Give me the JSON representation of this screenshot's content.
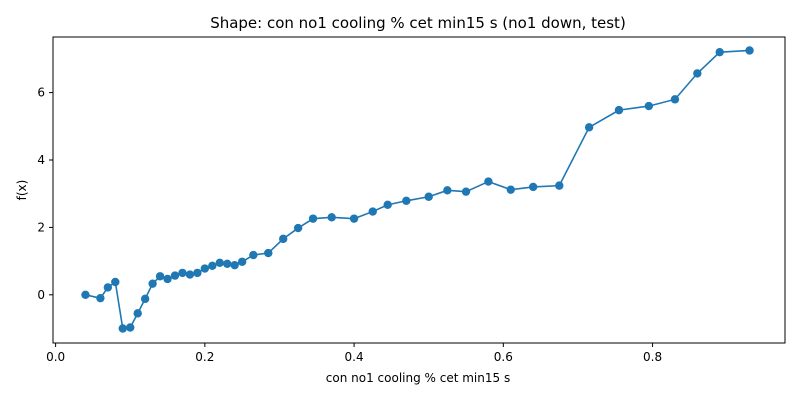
{
  "chart_data": {
    "type": "line",
    "title": "Shape: con no1 cooling % cet min15 s (no1 down, test)",
    "xlabel": "con no1 cooling % cet min15 s",
    "ylabel": "f(x)",
    "xlim": [
      -0.0035,
      0.9775
    ],
    "ylim": [
      -1.43,
      7.65
    ],
    "xticks": [
      0.0,
      0.2,
      0.4,
      0.6,
      0.8
    ],
    "xtick_labels": [
      "0.0",
      "0.2",
      "0.4",
      "0.6",
      "0.8"
    ],
    "yticks": [
      0,
      2,
      4,
      6
    ],
    "ytick_labels": [
      "0",
      "2",
      "4",
      "6"
    ],
    "grid": false,
    "marker": "circle",
    "color": "#1f77b4",
    "series": [
      {
        "x": [
          0.04,
          0.06,
          0.07,
          0.08,
          0.09,
          0.1,
          0.11,
          0.12,
          0.13,
          0.14,
          0.15,
          0.16,
          0.17,
          0.18,
          0.19,
          0.2,
          0.21,
          0.22,
          0.23,
          0.24,
          0.25,
          0.265,
          0.285,
          0.305,
          0.325,
          0.345,
          0.37,
          0.4,
          0.425,
          0.445,
          0.47,
          0.5,
          0.525,
          0.55,
          0.58,
          0.61,
          0.64,
          0.675,
          0.715,
          0.755,
          0.795,
          0.83,
          0.86,
          0.89,
          0.93
        ],
        "y": [
          0.0,
          -0.1,
          0.22,
          0.38,
          -1.0,
          -0.97,
          -0.55,
          -0.12,
          0.33,
          0.55,
          0.47,
          0.57,
          0.65,
          0.6,
          0.65,
          0.78,
          0.86,
          0.95,
          0.92,
          0.88,
          0.98,
          1.18,
          1.24,
          1.66,
          1.98,
          2.26,
          2.3,
          2.26,
          2.47,
          2.67,
          2.79,
          2.91,
          3.1,
          3.06,
          3.36,
          3.12,
          3.2,
          3.24,
          4.97,
          5.48,
          5.6,
          5.8,
          6.57,
          7.2,
          7.25
        ]
      }
    ]
  }
}
